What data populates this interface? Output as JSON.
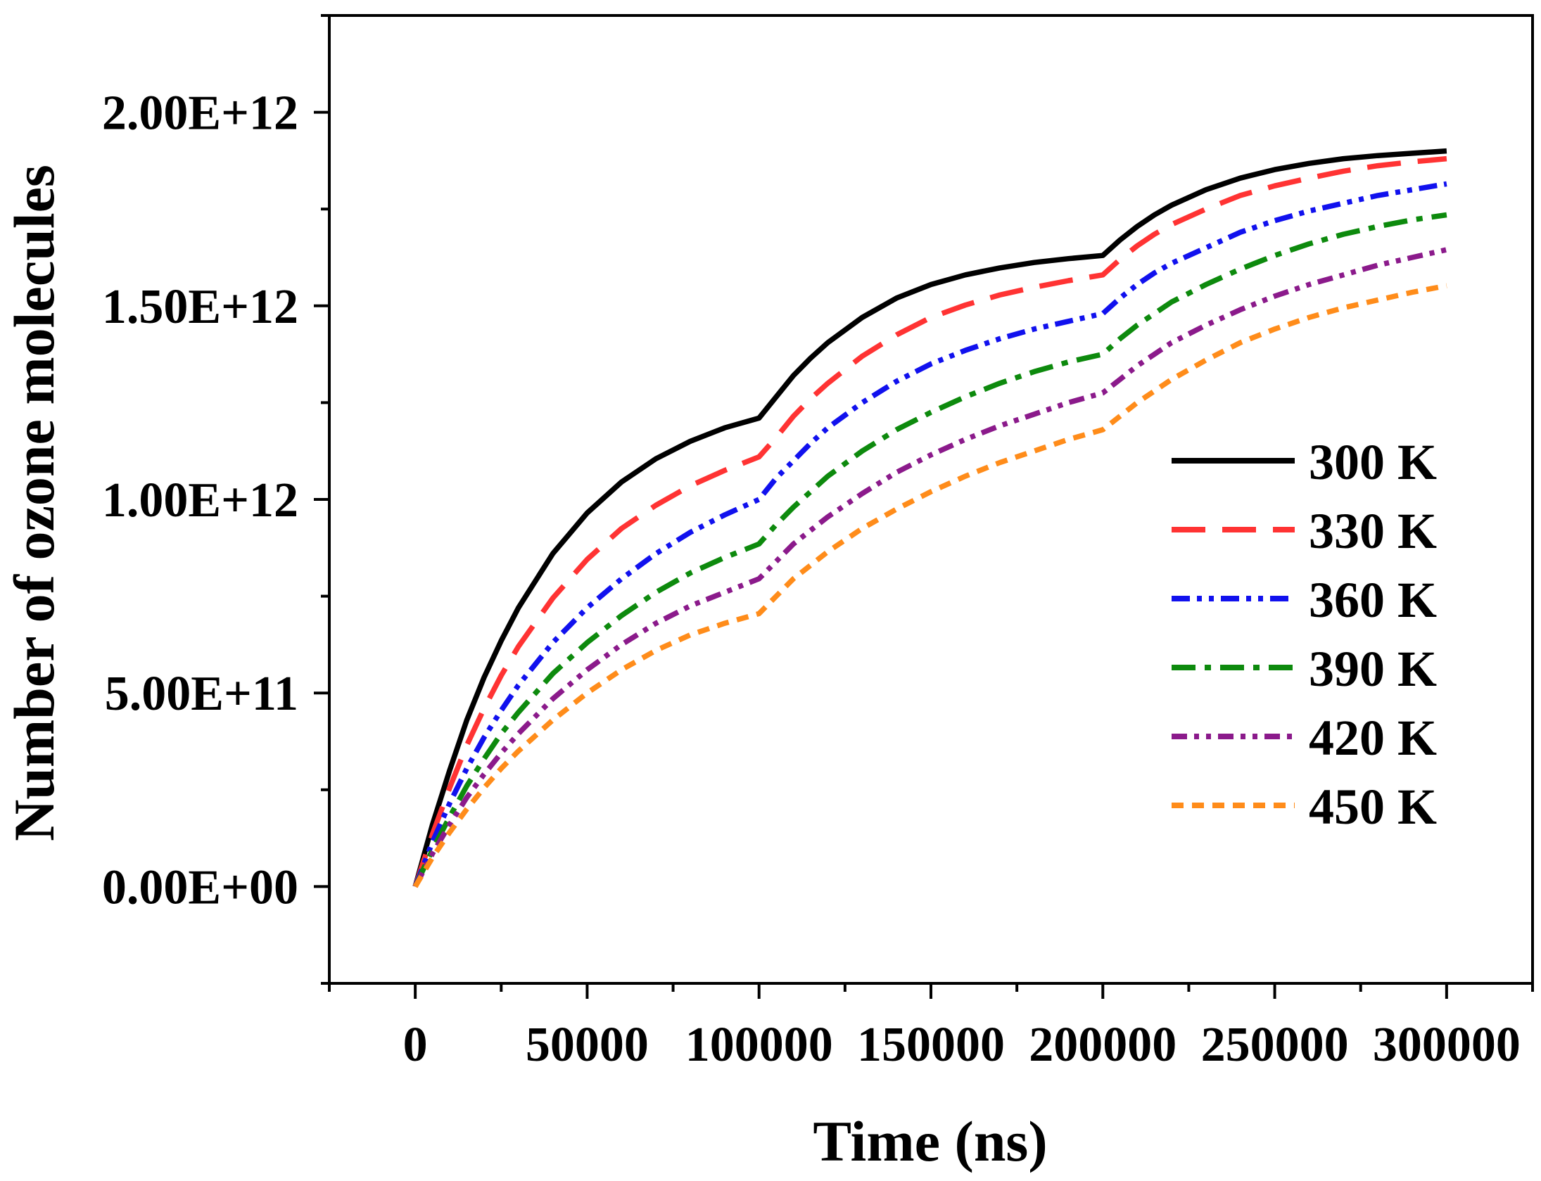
{
  "chart_data": {
    "type": "line",
    "title": "",
    "xlabel": "Time (ns)",
    "ylabel": "Number of ozone molecules",
    "xlim": [
      -25000,
      325000
    ],
    "ylim": [
      -250000000000.0,
      2250000000000.0
    ],
    "xticks": [
      0,
      50000,
      100000,
      150000,
      200000,
      250000,
      300000
    ],
    "xtick_labels": [
      "0",
      "50000",
      "100000",
      "150000",
      "200000",
      "250000",
      "300000"
    ],
    "yticks": [
      0,
      500000000000.0,
      1000000000000.0,
      1500000000000.0,
      2000000000000.0
    ],
    "ytick_labels": [
      "0.00E+00",
      "5.00E+11",
      "1.00E+12",
      "1.50E+12",
      "2.00E+12"
    ],
    "grid": false,
    "legend_position": "right-middle",
    "series": [
      {
        "name": "300 K",
        "color": "#000000",
        "dash": "solid",
        "x": [
          0,
          5000,
          10000,
          15000,
          20000,
          25000,
          30000,
          40000,
          50000,
          60000,
          70000,
          80000,
          90000,
          100000,
          105000,
          110000,
          115000,
          120000,
          130000,
          140000,
          150000,
          160000,
          170000,
          180000,
          190000,
          200000,
          205000,
          210000,
          215000,
          220000,
          230000,
          240000,
          250000,
          260000,
          270000,
          280000,
          290000,
          300000
        ],
        "y": [
          0,
          160000000000.0,
          300000000000.0,
          430000000000.0,
          540000000000.0,
          635000000000.0,
          720000000000.0,
          860000000000.0,
          965000000000.0,
          1045000000000.0,
          1105000000000.0,
          1150000000000.0,
          1185000000000.0,
          1210000000000.0,
          1265000000000.0,
          1320000000000.0,
          1365000000000.0,
          1405000000000.0,
          1470000000000.0,
          1520000000000.0,
          1555000000000.0,
          1580000000000.0,
          1598000000000.0,
          1612000000000.0,
          1622000000000.0,
          1630000000000.0,
          1670000000000.0,
          1705000000000.0,
          1735000000000.0,
          1760000000000.0,
          1800000000000.0,
          1830000000000.0,
          1852000000000.0,
          1868000000000.0,
          1880000000000.0,
          1888000000000.0,
          1894000000000.0,
          1900000000000.0
        ]
      },
      {
        "name": "330 K",
        "color": "#ff3333",
        "dash": "long-dash",
        "x": [
          0,
          5000,
          10000,
          15000,
          20000,
          25000,
          30000,
          40000,
          50000,
          60000,
          70000,
          80000,
          90000,
          100000,
          105000,
          110000,
          115000,
          120000,
          130000,
          140000,
          150000,
          160000,
          170000,
          180000,
          190000,
          200000,
          205000,
          210000,
          215000,
          220000,
          230000,
          240000,
          250000,
          260000,
          270000,
          280000,
          290000,
          300000
        ],
        "y": [
          0,
          135000000000.0,
          255000000000.0,
          365000000000.0,
          460000000000.0,
          545000000000.0,
          620000000000.0,
          745000000000.0,
          845000000000.0,
          925000000000.0,
          985000000000.0,
          1035000000000.0,
          1075000000000.0,
          1110000000000.0,
          1160000000000.0,
          1215000000000.0,
          1260000000000.0,
          1300000000000.0,
          1370000000000.0,
          1425000000000.0,
          1470000000000.0,
          1502000000000.0,
          1528000000000.0,
          1548000000000.0,
          1565000000000.0,
          1580000000000.0,
          1620000000000.0,
          1655000000000.0,
          1685000000000.0,
          1710000000000.0,
          1750000000000.0,
          1785000000000.0,
          1810000000000.0,
          1830000000000.0,
          1848000000000.0,
          1862000000000.0,
          1872000000000.0,
          1880000000000.0
        ]
      },
      {
        "name": "360 K",
        "color": "#1111ee",
        "dash": "dash-dot-dot",
        "x": [
          0,
          5000,
          10000,
          15000,
          20000,
          25000,
          30000,
          40000,
          50000,
          60000,
          70000,
          80000,
          90000,
          100000,
          105000,
          110000,
          115000,
          120000,
          130000,
          140000,
          150000,
          160000,
          170000,
          180000,
          190000,
          200000,
          205000,
          210000,
          215000,
          220000,
          230000,
          240000,
          250000,
          260000,
          270000,
          280000,
          290000,
          300000
        ],
        "y": [
          0,
          115000000000.0,
          215000000000.0,
          305000000000.0,
          385000000000.0,
          455000000000.0,
          520000000000.0,
          630000000000.0,
          720000000000.0,
          795000000000.0,
          860000000000.0,
          915000000000.0,
          960000000000.0,
          1000000000000.0,
          1055000000000.0,
          1100000000000.0,
          1145000000000.0,
          1185000000000.0,
          1250000000000.0,
          1305000000000.0,
          1350000000000.0,
          1385000000000.0,
          1415000000000.0,
          1440000000000.0,
          1460000000000.0,
          1480000000000.0,
          1520000000000.0,
          1555000000000.0,
          1585000000000.0,
          1610000000000.0,
          1650000000000.0,
          1690000000000.0,
          1720000000000.0,
          1745000000000.0,
          1765000000000.0,
          1785000000000.0,
          1800000000000.0,
          1815000000000.0
        ]
      },
      {
        "name": "390 K",
        "color": "#0d8a0d",
        "dash": "dash-dot",
        "x": [
          0,
          5000,
          10000,
          15000,
          20000,
          25000,
          30000,
          40000,
          50000,
          60000,
          70000,
          80000,
          90000,
          100000,
          105000,
          110000,
          115000,
          120000,
          130000,
          140000,
          150000,
          160000,
          170000,
          180000,
          190000,
          200000,
          205000,
          210000,
          215000,
          220000,
          230000,
          240000,
          250000,
          260000,
          270000,
          280000,
          290000,
          300000
        ],
        "y": [
          0,
          95000000000.0,
          180000000000.0,
          260000000000.0,
          330000000000.0,
          395000000000.0,
          450000000000.0,
          550000000000.0,
          630000000000.0,
          700000000000.0,
          760000000000.0,
          810000000000.0,
          850000000000.0,
          885000000000.0,
          935000000000.0,
          980000000000.0,
          1020000000000.0,
          1060000000000.0,
          1125000000000.0,
          1180000000000.0,
          1225000000000.0,
          1265000000000.0,
          1300000000000.0,
          1330000000000.0,
          1355000000000.0,
          1375000000000.0,
          1415000000000.0,
          1450000000000.0,
          1480000000000.0,
          1510000000000.0,
          1555000000000.0,
          1595000000000.0,
          1630000000000.0,
          1660000000000.0,
          1685000000000.0,
          1705000000000.0,
          1722000000000.0,
          1735000000000.0
        ]
      },
      {
        "name": "420 K",
        "color": "#8b1a8b",
        "dash": "dash-dot-dot-short",
        "x": [
          0,
          5000,
          10000,
          15000,
          20000,
          25000,
          30000,
          40000,
          50000,
          60000,
          70000,
          80000,
          90000,
          100000,
          105000,
          110000,
          115000,
          120000,
          130000,
          140000,
          150000,
          160000,
          170000,
          180000,
          190000,
          200000,
          205000,
          210000,
          215000,
          220000,
          230000,
          240000,
          250000,
          260000,
          270000,
          280000,
          290000,
          300000
        ],
        "y": [
          0,
          85000000000.0,
          160000000000.0,
          230000000000.0,
          290000000000.0,
          345000000000.0,
          395000000000.0,
          485000000000.0,
          560000000000.0,
          625000000000.0,
          680000000000.0,
          725000000000.0,
          760000000000.0,
          795000000000.0,
          840000000000.0,
          885000000000.0,
          920000000000.0,
          955000000000.0,
          1015000000000.0,
          1070000000000.0,
          1115000000000.0,
          1155000000000.0,
          1190000000000.0,
          1220000000000.0,
          1250000000000.0,
          1275000000000.0,
          1310000000000.0,
          1345000000000.0,
          1375000000000.0,
          1405000000000.0,
          1450000000000.0,
          1490000000000.0,
          1525000000000.0,
          1555000000000.0,
          1580000000000.0,
          1605000000000.0,
          1625000000000.0,
          1645000000000.0
        ]
      },
      {
        "name": "450 K",
        "color": "#ff8c1a",
        "dash": "short-dash",
        "x": [
          0,
          5000,
          10000,
          15000,
          20000,
          25000,
          30000,
          40000,
          50000,
          60000,
          70000,
          80000,
          90000,
          100000,
          105000,
          110000,
          115000,
          120000,
          130000,
          140000,
          150000,
          160000,
          170000,
          180000,
          190000,
          200000,
          205000,
          210000,
          215000,
          220000,
          230000,
          240000,
          250000,
          260000,
          270000,
          280000,
          290000,
          300000
        ],
        "y": [
          0,
          75000000000.0,
          140000000000.0,
          200000000000.0,
          255000000000.0,
          305000000000.0,
          350000000000.0,
          430000000000.0,
          500000000000.0,
          560000000000.0,
          610000000000.0,
          650000000000.0,
          680000000000.0,
          705000000000.0,
          750000000000.0,
          795000000000.0,
          830000000000.0,
          865000000000.0,
          925000000000.0,
          975000000000.0,
          1020000000000.0,
          1060000000000.0,
          1095000000000.0,
          1125000000000.0,
          1155000000000.0,
          1180000000000.0,
          1215000000000.0,
          1250000000000.0,
          1280000000000.0,
          1310000000000.0,
          1360000000000.0,
          1405000000000.0,
          1440000000000.0,
          1470000000000.0,
          1495000000000.0,
          1515000000000.0,
          1535000000000.0,
          1552000000000.0
        ]
      }
    ]
  }
}
